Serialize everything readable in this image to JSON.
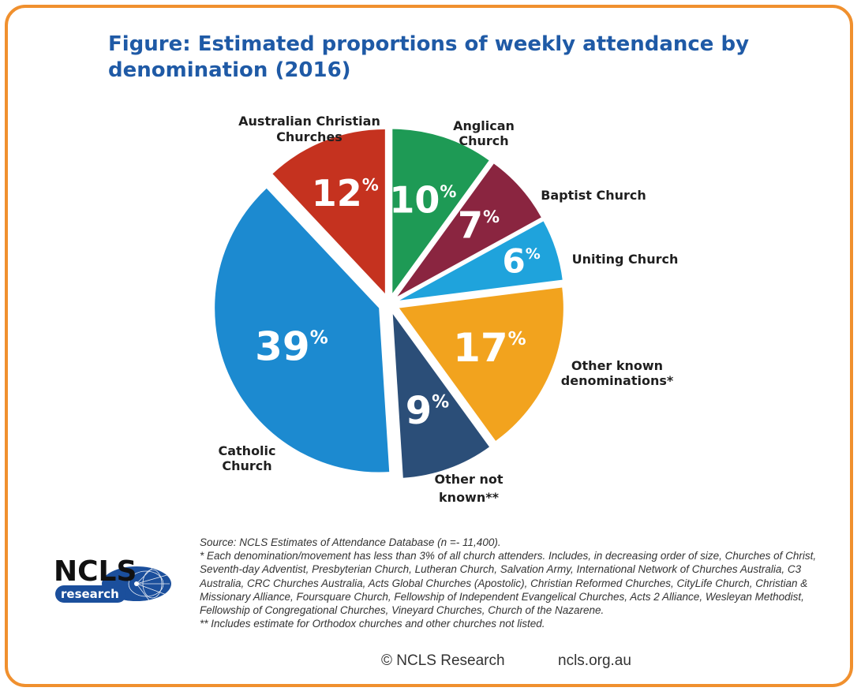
{
  "title": "Figure: Estimated proportions of weekly attendance by denomination (2016)",
  "chart_data": {
    "type": "pie",
    "title": "Figure: Estimated proportions of weekly attendance by denomination (2016)",
    "unit": "%",
    "start_angle_deg": 0,
    "direction": "clockwise",
    "slices": [
      {
        "label": "Anglican Church",
        "value": 10,
        "display": "10",
        "color": "#1e9a55"
      },
      {
        "label": "Baptist Church",
        "value": 7,
        "display": "7",
        "color": "#8a2540"
      },
      {
        "label": "Uniting Church",
        "value": 6,
        "display": "6",
        "color": "#1fa3dc"
      },
      {
        "label": "Other known denominations*",
        "value": 17,
        "display": "17",
        "color": "#f2a31e"
      },
      {
        "label": "Other not known**",
        "value": 9,
        "display": "9",
        "color": "#2b4e78"
      },
      {
        "label": "Catholic Church",
        "value": 39,
        "display": "39",
        "color": "#1c8ad0"
      },
      {
        "label": "Australian Christian Churches",
        "value": 12,
        "display": "12",
        "color": "#c5321f"
      }
    ]
  },
  "notes": [
    "Source: NCLS Estimates of Attendance Database (n =- 11,400).",
    "* Each denomination/movement has less than 3% of all church attenders. Includes, in decreasing order of size, Churches of Christ, Seventh-day Adventist, Presbyterian Church, Lutheran Church, Salvation Army, International Network of Churches Australia, C3 Australia, CRC Churches Australia, Acts Global Churches (Apostolic), Christian Reformed Churches, CityLife Church, Christian & Missionary Alliance, Foursquare Church, Fellowship of Independent Evangelical Churches, Acts 2 Alliance, Wesleyan Methodist, Fellowship of Congregational Churches, Vineyard Churches, Church of the Nazarene.",
    "** Includes estimate for Orthodox churches and other churches not listed."
  ],
  "logo": {
    "main": "NCLS",
    "sub": "research"
  },
  "footer": {
    "copyright": "© NCLS Research",
    "website": "ncls.org.au"
  },
  "colors": {
    "border": "#f0902e",
    "title": "#1f5aa6",
    "logo_blue": "#1b4f9c"
  }
}
